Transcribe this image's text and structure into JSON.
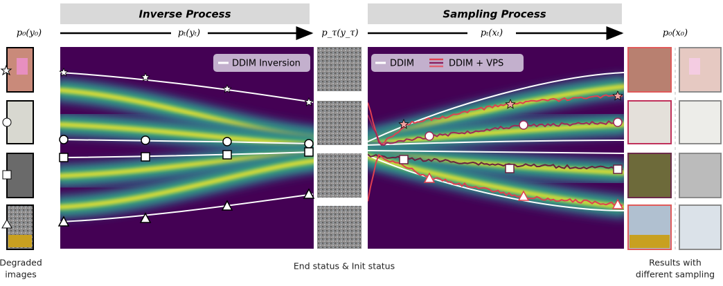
{
  "header": {
    "left_title": "Inverse Process",
    "right_title": "Sampling Process"
  },
  "distributions": {
    "p0_y0": "p₀(y₀)",
    "pt_yt": "pₜ(yₜ)",
    "ptau_ytau": "p_τ(y_τ)",
    "pt_xt": "pₜ(xₜ)",
    "p0_x0": "p₀(x₀)"
  },
  "legend": {
    "inversion": "DDIM Inversion",
    "ddim": "DDIM",
    "vps": "DDIM + VPS"
  },
  "captions": {
    "left": [
      "Degraded",
      "images"
    ],
    "middle": "End status & Init status",
    "right": [
      "Results with",
      "different sampling"
    ]
  }
}
